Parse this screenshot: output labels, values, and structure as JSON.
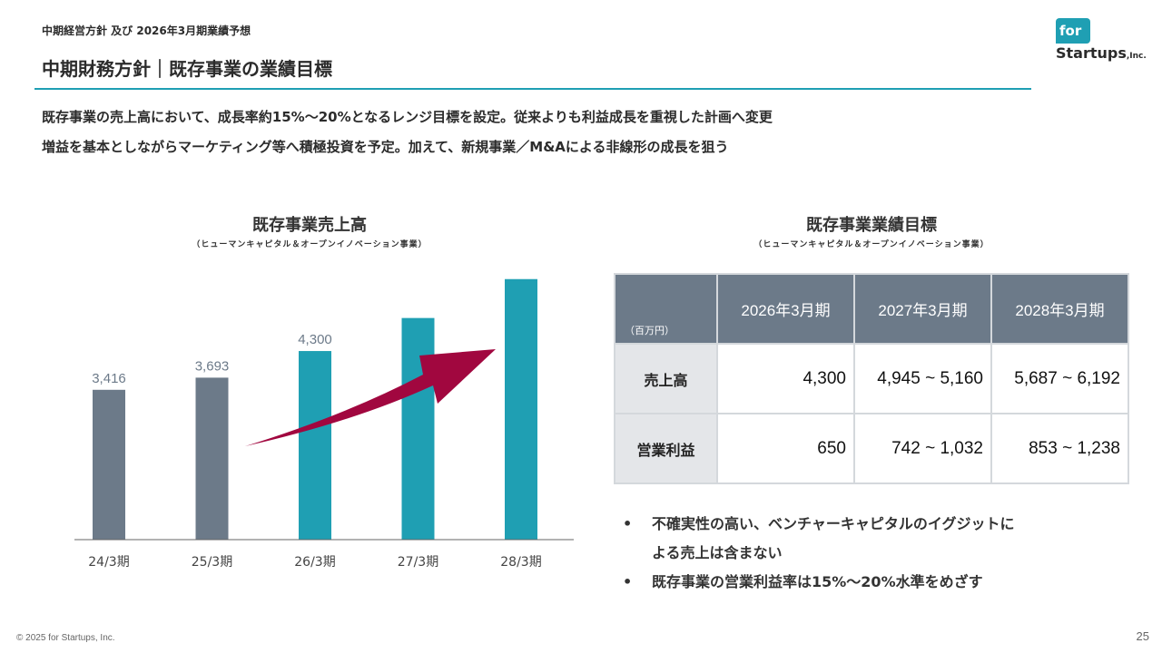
{
  "header": {
    "breadcrumb": "中期経営方針 及び 2026年3月期業績予想",
    "title": "中期財務方針｜既存事業の業績目標"
  },
  "logo": {
    "for_text": "for",
    "startups_text": "Startups",
    "inc_text": ",Inc."
  },
  "lead": {
    "line1": "既存事業の売上高において、成長率約15%〜20%となるレンジ目標を設定。従来よりも利益成長を重視した計画へ変更",
    "line2": "増益を基本としながらマーケティング等へ積極投資を予定。加えて、新規事業／M&Aによる非線形の成長を狙う"
  },
  "chart": {
    "title": "既存事業売上高",
    "subtitle": "（ヒューマンキャピタル＆オープンイノベーション事業）"
  },
  "chart_data": {
    "type": "bar",
    "title": "既存事業売上高",
    "categories": [
      "24/3期",
      "25/3期",
      "26/3期",
      "27/3期",
      "28/3期"
    ],
    "values": [
      3416,
      3693,
      4300,
      5053,
      5940
    ],
    "value_labels": [
      "3,416",
      "3,693",
      "4,300",
      "",
      ""
    ],
    "bar_colors": [
      "#6c7a89",
      "#6c7a89",
      "#1f9fb3",
      "#1f9fb3",
      "#1f9fb3"
    ],
    "arrow_color": "#a1073f",
    "ylim": [
      0,
      6100
    ]
  },
  "table": {
    "title": "既存事業業績目標",
    "subtitle": "（ヒューマンキャピタル＆オープンイノベーション事業）",
    "unit": "（百万円）",
    "columns": [
      "2026年3月期",
      "2027年3月期",
      "2028年3月期"
    ],
    "rows": [
      {
        "label": "売上高",
        "values": [
          "4,300",
          "4,945 ~ 5,160",
          "5,687 ~ 6,192"
        ]
      },
      {
        "label": "営業利益",
        "values": [
          "650",
          "742 ~ 1,032",
          "853 ~ 1,238"
        ]
      }
    ]
  },
  "notes": {
    "bullet": "•",
    "items": [
      "不確実性の高い、ベンチャーキャピタルのイグジットに",
      "よる売上は含まない",
      "既存事業の営業利益率は15%〜20%水準をめざす"
    ]
  },
  "footer": {
    "copyright": "© 2025 for Startups, Inc.",
    "page_number": "25"
  }
}
